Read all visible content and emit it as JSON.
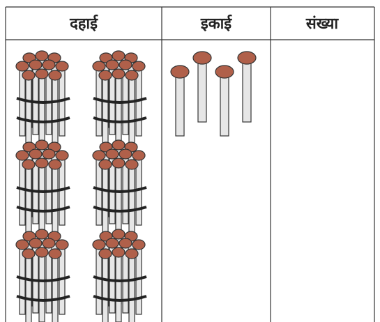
{
  "table": {
    "headers": [
      "दहाई",
      "इकाई",
      "संख्या"
    ]
  }
}
